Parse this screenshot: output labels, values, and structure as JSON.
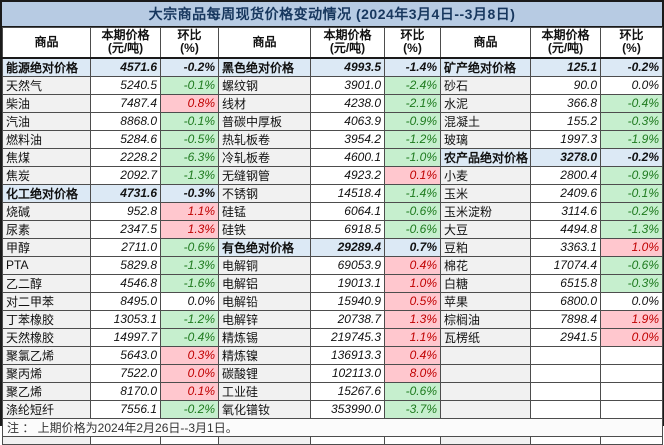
{
  "colors": {
    "title_bg": "#B7CBE3",
    "title_text": "#17375E",
    "agg_bg": "#DCE9F5",
    "up_bg": "#FFC7CE",
    "up_text": "#C00000",
    "down_bg": "#C6EFCE",
    "down_text": "#1E7A1E"
  },
  "chart_data": {
    "type": "table",
    "title": "大宗商品每周现货价格变动情况 (2024年3月4日--3月8日)",
    "column_headers": {
      "commodity": "商品",
      "price": "本期价格\n(元/吨)",
      "pct": "环比\n(%)"
    },
    "footnote": "注 ： 上期价格为2024年2月26日--3月1日。",
    "style_legend": {
      "agg": "category aggregate row (light blue, bold)",
      "up": "price increase (pink cell, red text)",
      "down": "price decrease (green cell, green text)",
      "flat": "no change (white cell)"
    },
    "groups": [
      {
        "rows": [
          {
            "name": "能源绝对价格",
            "price": "4571.6",
            "pct": "-0.2%",
            "style": "agg"
          },
          {
            "name": "天然气",
            "price": "5240.5",
            "pct": "-0.1%",
            "style": "down"
          },
          {
            "name": "柴油",
            "price": "7487.4",
            "pct": "0.8%",
            "style": "up"
          },
          {
            "name": "汽油",
            "price": "8868.0",
            "pct": "-0.1%",
            "style": "down"
          },
          {
            "name": "燃料油",
            "price": "5284.6",
            "pct": "-0.5%",
            "style": "down"
          },
          {
            "name": "焦煤",
            "price": "2228.2",
            "pct": "-6.3%",
            "style": "down"
          },
          {
            "name": "焦炭",
            "price": "2092.7",
            "pct": "-1.3%",
            "style": "down"
          },
          {
            "name": "化工绝对价格",
            "price": "4731.6",
            "pct": "-0.3%",
            "style": "agg"
          },
          {
            "name": "烧碱",
            "price": "952.8",
            "pct": "1.1%",
            "style": "up"
          },
          {
            "name": "尿素",
            "price": "2347.5",
            "pct": "1.3%",
            "style": "up"
          },
          {
            "name": "甲醇",
            "price": "2711.0",
            "pct": "-0.6%",
            "style": "down"
          },
          {
            "name": "PTA",
            "price": "5829.8",
            "pct": "-1.3%",
            "style": "down"
          },
          {
            "name": "乙二醇",
            "price": "4546.8",
            "pct": "-1.6%",
            "style": "down"
          },
          {
            "name": "对二甲苯",
            "price": "8495.0",
            "pct": "0.0%",
            "style": "flat"
          },
          {
            "name": "丁苯橡胶",
            "price": "13053.1",
            "pct": "-1.2%",
            "style": "down"
          },
          {
            "name": "天然橡胶",
            "price": "14997.7",
            "pct": "-0.4%",
            "style": "down"
          },
          {
            "name": "聚氯乙烯",
            "price": "5643.0",
            "pct": "0.3%",
            "style": "up"
          },
          {
            "name": "聚丙烯",
            "price": "7522.0",
            "pct": "0.0%",
            "style": "up"
          },
          {
            "name": "聚乙烯",
            "price": "8170.0",
            "pct": "0.1%",
            "style": "up"
          },
          {
            "name": "涤纶短纤",
            "price": "7556.1",
            "pct": "-0.2%",
            "style": "down"
          }
        ]
      },
      {
        "rows": [
          {
            "name": "黑色绝对价格",
            "price": "4993.5",
            "pct": "-1.4%",
            "style": "agg"
          },
          {
            "name": "螺纹钢",
            "price": "3901.0",
            "pct": "-2.4%",
            "style": "down"
          },
          {
            "name": "线材",
            "price": "4238.0",
            "pct": "-2.1%",
            "style": "down"
          },
          {
            "name": "普碳中厚板",
            "price": "4063.9",
            "pct": "-0.9%",
            "style": "down"
          },
          {
            "name": "热轧板卷",
            "price": "3954.2",
            "pct": "-1.2%",
            "style": "down"
          },
          {
            "name": "冷轧板卷",
            "price": "4600.1",
            "pct": "-1.0%",
            "style": "down"
          },
          {
            "name": "无缝钢管",
            "price": "4923.2",
            "pct": "0.1%",
            "style": "up"
          },
          {
            "name": "不锈钢",
            "price": "14518.4",
            "pct": "-1.4%",
            "style": "down"
          },
          {
            "name": "硅锰",
            "price": "6064.1",
            "pct": "-0.6%",
            "style": "down"
          },
          {
            "name": "硅铁",
            "price": "6918.5",
            "pct": "-0.6%",
            "style": "down"
          },
          {
            "name": "有色绝对价格",
            "price": "29289.4",
            "pct": "0.7%",
            "style": "agg"
          },
          {
            "name": "电解铜",
            "price": "69053.9",
            "pct": "0.4%",
            "style": "up"
          },
          {
            "name": "电解铝",
            "price": "19013.1",
            "pct": "1.0%",
            "style": "up"
          },
          {
            "name": "电解铅",
            "price": "15940.9",
            "pct": "0.5%",
            "style": "up"
          },
          {
            "name": "电解锌",
            "price": "20738.7",
            "pct": "1.3%",
            "style": "up"
          },
          {
            "name": "精炼锡",
            "price": "219745.3",
            "pct": "1.1%",
            "style": "up"
          },
          {
            "name": "精炼镍",
            "price": "136913.3",
            "pct": "0.4%",
            "style": "up"
          },
          {
            "name": "碳酸锂",
            "price": "102113.0",
            "pct": "8.0%",
            "style": "up"
          },
          {
            "name": "工业硅",
            "price": "15267.6",
            "pct": "-0.6%",
            "style": "down"
          },
          {
            "name": "氧化镨钕",
            "price": "353990.0",
            "pct": "-3.7%",
            "style": "down"
          }
        ]
      },
      {
        "rows": [
          {
            "name": "矿产绝对价格",
            "price": "125.1",
            "pct": "-0.2%",
            "style": "agg"
          },
          {
            "name": "砂石",
            "price": "90.0",
            "pct": "0.0%",
            "style": "flat"
          },
          {
            "name": "水泥",
            "price": "366.8",
            "pct": "-0.4%",
            "style": "down"
          },
          {
            "name": "混凝土",
            "price": "155.2",
            "pct": "-0.3%",
            "style": "down"
          },
          {
            "name": "玻璃",
            "price": "1997.3",
            "pct": "-1.9%",
            "style": "down"
          },
          {
            "name": "农产品绝对价格",
            "price": "3278.0",
            "pct": "-0.2%",
            "style": "agg"
          },
          {
            "name": "小麦",
            "price": "2800.4",
            "pct": "-0.9%",
            "style": "down"
          },
          {
            "name": "玉米",
            "price": "2409.6",
            "pct": "-0.1%",
            "style": "down"
          },
          {
            "name": "玉米淀粉",
            "price": "3114.6",
            "pct": "-0.2%",
            "style": "down"
          },
          {
            "name": "大豆",
            "price": "4494.8",
            "pct": "-1.3%",
            "style": "down"
          },
          {
            "name": "豆粕",
            "price": "3363.1",
            "pct": "1.0%",
            "style": "up"
          },
          {
            "name": "棉花",
            "price": "17074.4",
            "pct": "-0.6%",
            "style": "down"
          },
          {
            "name": "白糖",
            "price": "6515.8",
            "pct": "-0.3%",
            "style": "down"
          },
          {
            "name": "苹果",
            "price": "6800.0",
            "pct": "0.0%",
            "style": "flat"
          },
          {
            "name": "棕榈油",
            "price": "7898.4",
            "pct": "1.9%",
            "style": "up"
          },
          {
            "name": "瓦楞纸",
            "price": "2941.5",
            "pct": "0.0%",
            "style": "up"
          },
          {
            "name": "",
            "price": "",
            "pct": "",
            "style": "empty"
          },
          {
            "name": "",
            "price": "",
            "pct": "",
            "style": "empty"
          },
          {
            "name": "",
            "price": "",
            "pct": "",
            "style": "empty"
          },
          {
            "name": "",
            "price": "",
            "pct": "",
            "style": "empty"
          }
        ]
      }
    ]
  }
}
